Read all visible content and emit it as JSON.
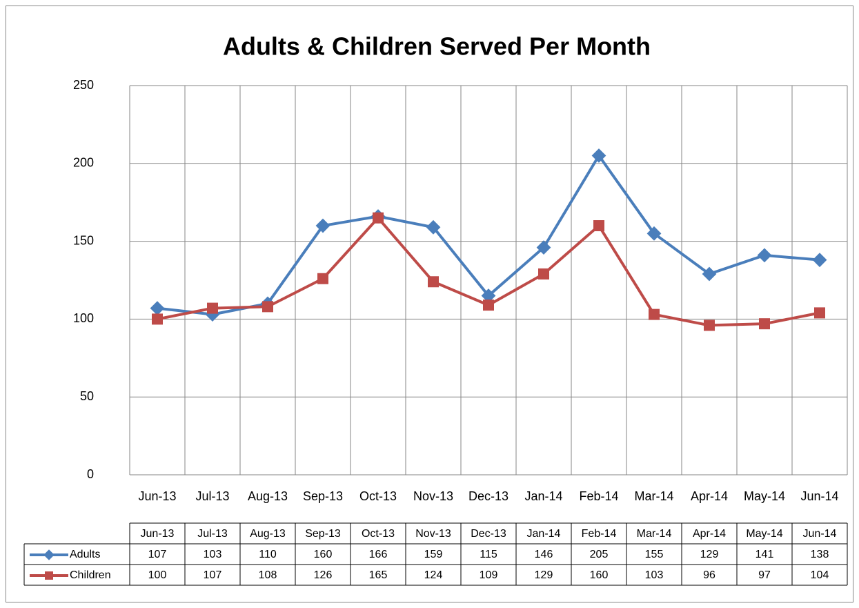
{
  "chart_data": {
    "type": "line",
    "title": "Adults & Children Served Per Month",
    "categories": [
      "Jun-13",
      "Jul-13",
      "Aug-13",
      "Sep-13",
      "Oct-13",
      "Nov-13",
      "Dec-13",
      "Jan-14",
      "Feb-14",
      "Mar-14",
      "Apr-14",
      "May-14",
      "Jun-14"
    ],
    "series": [
      {
        "name": "Adults",
        "color": "#4a7ebb",
        "marker": "diamond",
        "values": [
          107,
          103,
          110,
          160,
          166,
          159,
          115,
          146,
          205,
          155,
          129,
          141,
          138
        ]
      },
      {
        "name": "Children",
        "color": "#be4b48",
        "marker": "square",
        "values": [
          100,
          107,
          108,
          126,
          165,
          124,
          109,
          129,
          160,
          103,
          96,
          97,
          104
        ]
      }
    ],
    "ylim": [
      0,
      250
    ],
    "yticks": [
      0,
      50,
      100,
      150,
      200,
      250
    ],
    "grid": true,
    "data_table": true
  }
}
